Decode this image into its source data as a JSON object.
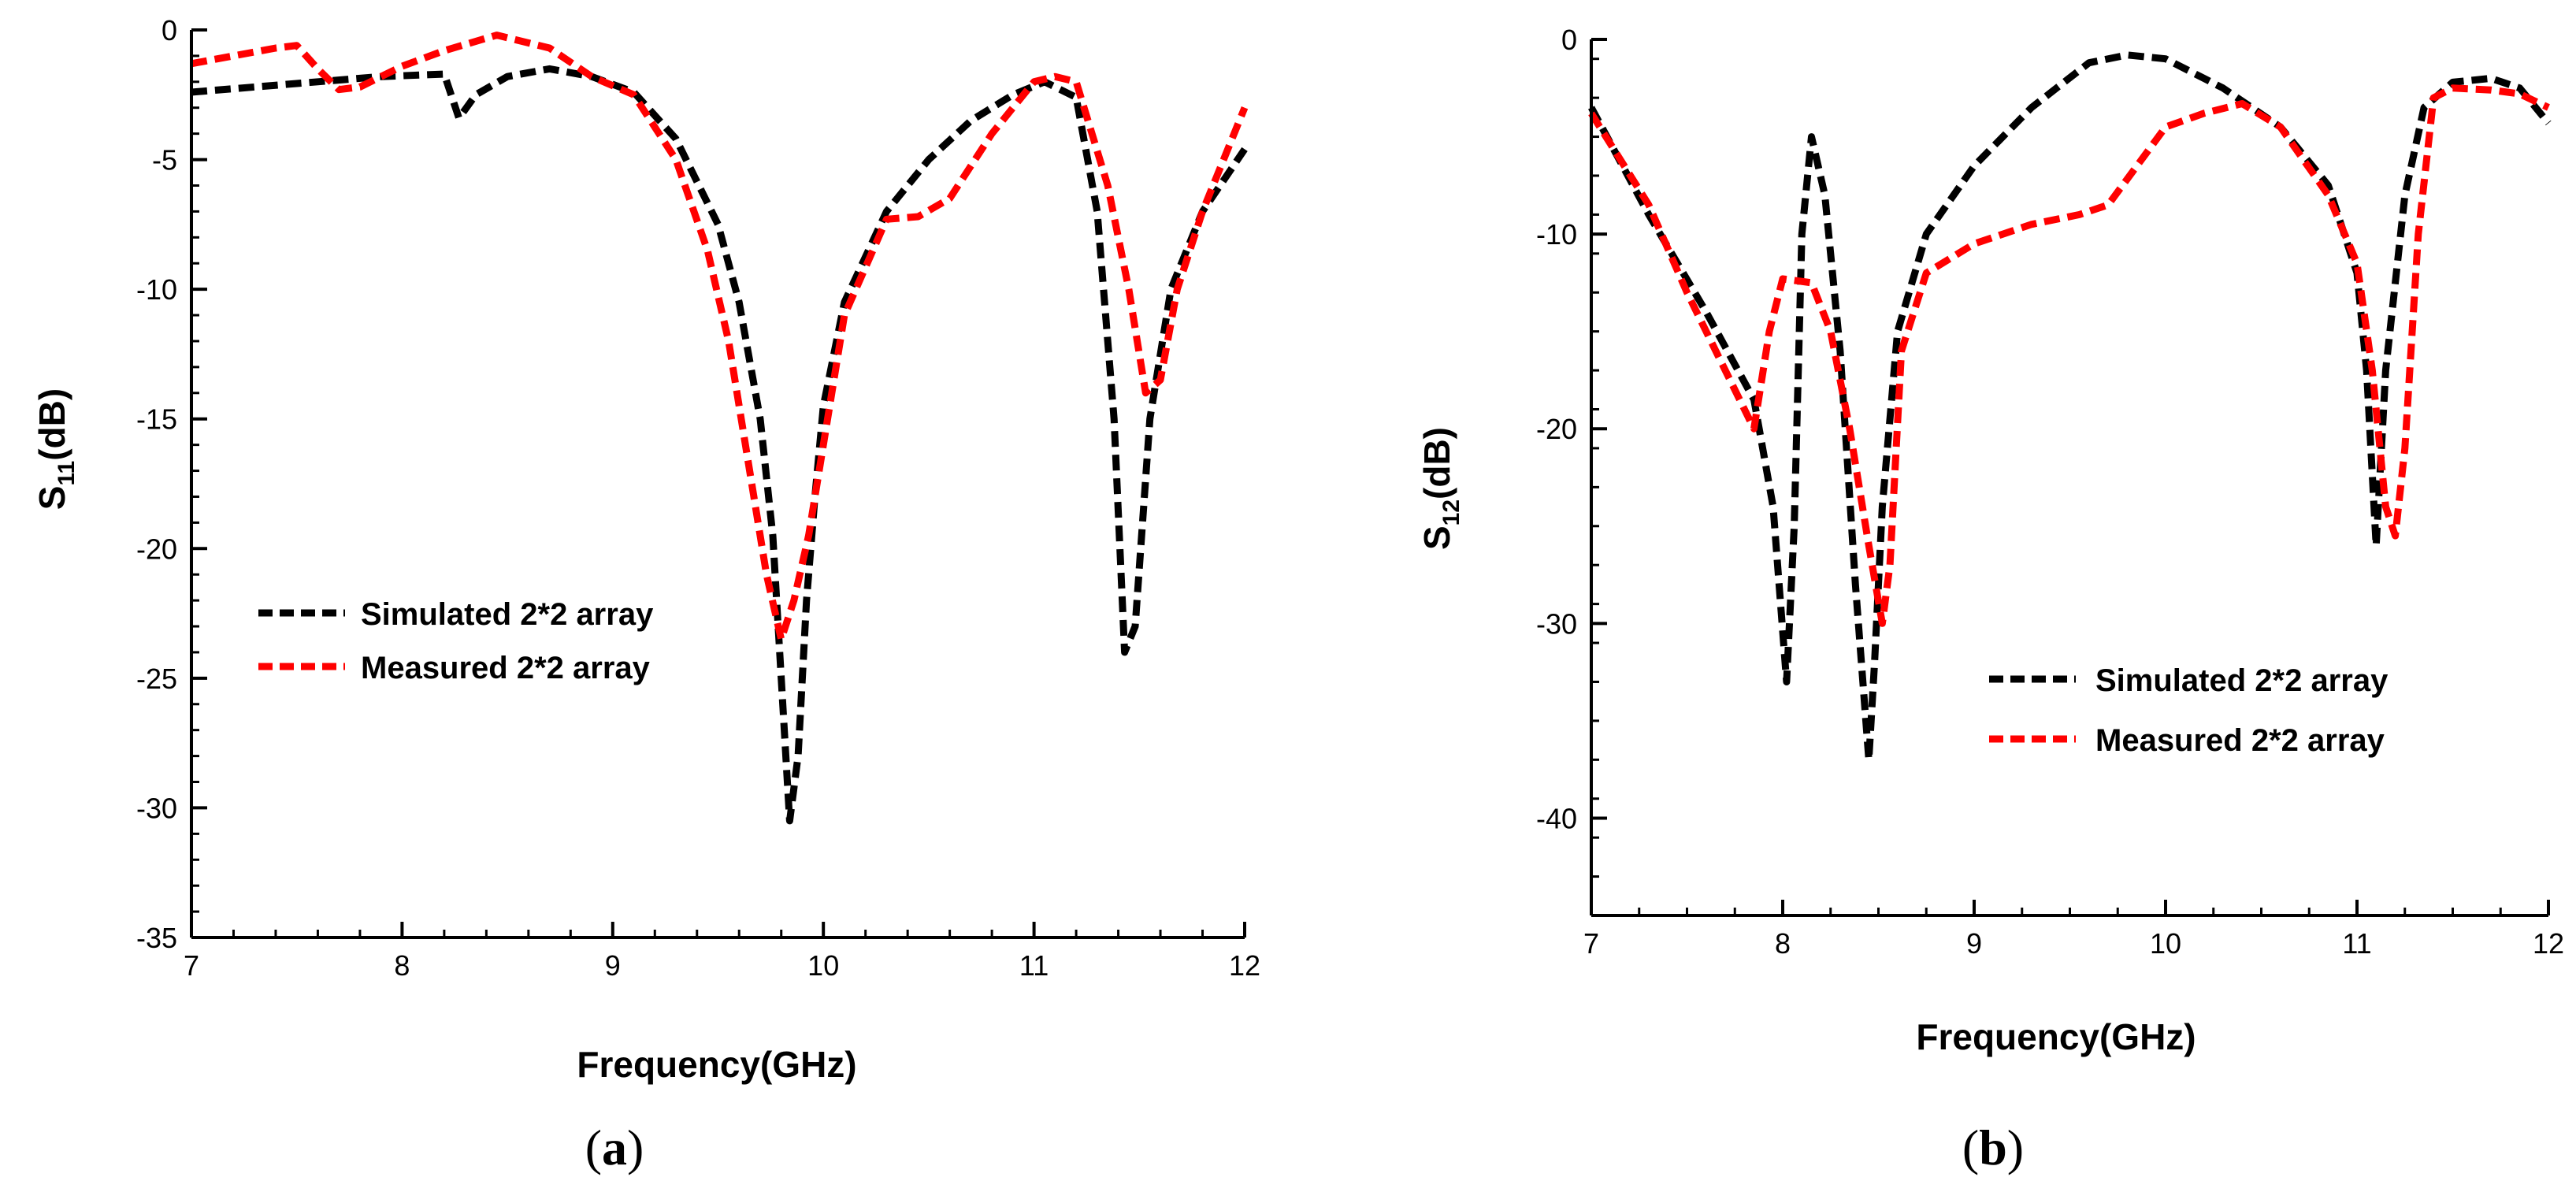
{
  "chart_data": [
    {
      "type": "line",
      "panel_label": "a",
      "xlabel": "Frequency(GHz)",
      "ylabel": "S11(dB)",
      "ylabel_main": "S",
      "ylabel_sub": "11",
      "ylabel_tail": "(dB)",
      "xlim": [
        7,
        12
      ],
      "ylim": [
        -35,
        0
      ],
      "xticks": [
        "7",
        "8",
        "9",
        "10",
        "11",
        "12"
      ],
      "yticks": [
        "0",
        "-5",
        "-10",
        "-15",
        "-20",
        "-25",
        "-30",
        "-35"
      ],
      "legend_position": "center-left",
      "series": [
        {
          "name": "Simulated 2*2 array",
          "color": "#000000",
          "x": [
            7.0,
            7.3,
            7.6,
            7.9,
            8.2,
            8.27,
            8.35,
            8.5,
            8.7,
            8.9,
            9.1,
            9.3,
            9.5,
            9.6,
            9.7,
            9.76,
            9.8,
            9.84,
            9.88,
            9.92,
            9.96,
            10.0,
            10.1,
            10.3,
            10.5,
            10.7,
            10.9,
            11.05,
            11.2,
            11.3,
            11.38,
            11.43,
            11.48,
            11.55,
            11.65,
            11.8,
            12.0
          ],
          "values": [
            -2.4,
            -2.2,
            -2.0,
            -1.8,
            -1.7,
            -3.4,
            -2.5,
            -1.8,
            -1.5,
            -1.8,
            -2.4,
            -4.2,
            -7.5,
            -10.5,
            -15.0,
            -19.5,
            -25.0,
            -30.5,
            -28.0,
            -22.0,
            -18.0,
            -14.5,
            -10.5,
            -7.0,
            -5.0,
            -3.5,
            -2.5,
            -2.0,
            -2.6,
            -7.0,
            -15.0,
            -24.0,
            -23.0,
            -15.0,
            -10.0,
            -7.0,
            -4.6
          ]
        },
        {
          "name": "Measured 2*2 array",
          "color": "#ff0000",
          "x": [
            7.0,
            7.2,
            7.4,
            7.5,
            7.6,
            7.7,
            7.8,
            8.0,
            8.2,
            8.45,
            8.7,
            8.9,
            9.1,
            9.3,
            9.45,
            9.55,
            9.65,
            9.73,
            9.8,
            9.86,
            9.93,
            10.0,
            10.1,
            10.3,
            10.45,
            10.6,
            10.8,
            11.0,
            11.1,
            11.2,
            11.35,
            11.45,
            11.53,
            11.6,
            11.68,
            11.8,
            12.0
          ],
          "values": [
            -1.3,
            -1.0,
            -0.7,
            -0.6,
            -1.5,
            -2.3,
            -2.2,
            -1.4,
            -0.8,
            -0.2,
            -0.7,
            -1.8,
            -2.5,
            -5.0,
            -8.5,
            -12.0,
            -17.0,
            -21.0,
            -23.5,
            -22.0,
            -19.5,
            -16.0,
            -11.0,
            -7.3,
            -7.2,
            -6.5,
            -4.0,
            -2.0,
            -1.8,
            -2.0,
            -6.0,
            -10.0,
            -14.0,
            -13.5,
            -10.0,
            -7.0,
            -3.0
          ]
        }
      ]
    },
    {
      "type": "line",
      "panel_label": "b",
      "xlabel": "Frequency(GHz)",
      "ylabel": "S12(dB)",
      "ylabel_main": "S",
      "ylabel_sub": "12",
      "ylabel_tail": "(dB)",
      "xlim": [
        7,
        12
      ],
      "ylim": [
        -45,
        0
      ],
      "xticks": [
        "7",
        "8",
        "9",
        "10",
        "11",
        "12"
      ],
      "yticks": [
        "0",
        "-10",
        "-20",
        "-30",
        "-40"
      ],
      "legend_position": "lower-right",
      "series": [
        {
          "name": "Simulated 2*2 array",
          "color": "#000000",
          "x": [
            7.0,
            7.3,
            7.6,
            7.85,
            7.95,
            8.02,
            8.06,
            8.1,
            8.15,
            8.22,
            8.3,
            8.38,
            8.45,
            8.48,
            8.52,
            8.6,
            8.75,
            9.0,
            9.3,
            9.6,
            9.8,
            10.0,
            10.3,
            10.6,
            10.85,
            11.0,
            11.05,
            11.1,
            11.15,
            11.25,
            11.35,
            11.5,
            11.7,
            11.85,
            12.0
          ],
          "values": [
            -3.5,
            -9.0,
            -14.0,
            -18.5,
            -24.0,
            -33.0,
            -25.0,
            -10.0,
            -5.0,
            -8.0,
            -16.0,
            -28.0,
            -37.0,
            -32.0,
            -24.0,
            -15.0,
            -10.0,
            -6.5,
            -3.5,
            -1.2,
            -0.8,
            -1.0,
            -2.5,
            -4.5,
            -7.5,
            -12.0,
            -17.0,
            -26.0,
            -17.0,
            -8.0,
            -3.5,
            -2.2,
            -2.0,
            -2.5,
            -4.3
          ]
        },
        {
          "name": "Measured 2*2 array",
          "color": "#ff0000",
          "x": [
            7.0,
            7.3,
            7.5,
            7.7,
            7.85,
            7.93,
            8.0,
            8.15,
            8.25,
            8.35,
            8.45,
            8.52,
            8.56,
            8.62,
            8.75,
            9.0,
            9.3,
            9.55,
            9.7,
            9.85,
            10.0,
            10.2,
            10.4,
            10.6,
            10.85,
            11.0,
            11.08,
            11.15,
            11.2,
            11.25,
            11.32,
            11.4,
            11.5,
            11.7,
            11.85,
            12.0
          ],
          "values": [
            -3.8,
            -8.5,
            -13.0,
            -17.0,
            -20.0,
            -15.0,
            -12.3,
            -12.5,
            -15.0,
            -20.0,
            -26.0,
            -30.0,
            -27.0,
            -16.0,
            -12.0,
            -10.5,
            -9.5,
            -9.0,
            -8.5,
            -6.5,
            -4.5,
            -3.8,
            -3.3,
            -4.5,
            -8.0,
            -11.5,
            -17.0,
            -24.0,
            -25.5,
            -21.0,
            -10.0,
            -3.0,
            -2.5,
            -2.6,
            -2.8,
            -3.5
          ]
        }
      ]
    }
  ]
}
